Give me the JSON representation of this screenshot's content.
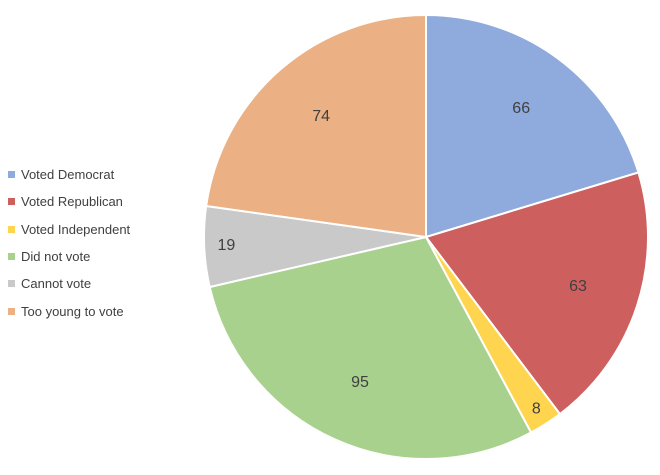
{
  "chart_data": {
    "type": "pie",
    "categories": [
      "Voted Democrat",
      "Voted Republican",
      "Voted Independent",
      "Did not vote",
      "Cannot vote",
      "Too young to vote"
    ],
    "values": [
      66,
      63,
      8,
      95,
      19,
      74
    ],
    "colors": [
      "#8faadc",
      "#cd5f5f",
      "#ffd54f",
      "#a9d18e",
      "#c9c9c9",
      "#ebb084"
    ],
    "legend_position": "left",
    "data_labels": true
  }
}
